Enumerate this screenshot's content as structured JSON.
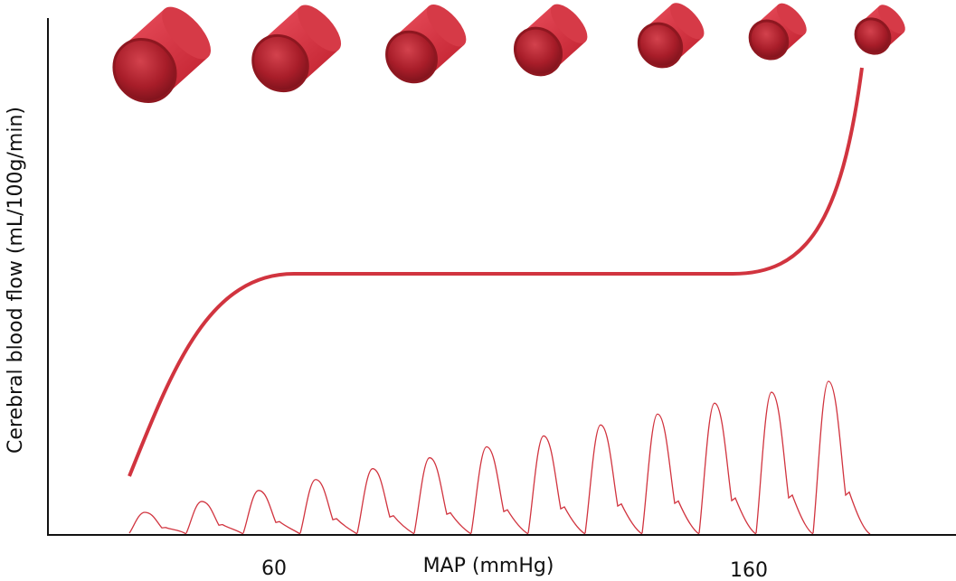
{
  "axes": {
    "y_label": "Cerebral blood flow (mL/100g/min)",
    "x_label": "MAP (mmHg)",
    "x_ticks": [
      "60",
      "160"
    ]
  }
}
